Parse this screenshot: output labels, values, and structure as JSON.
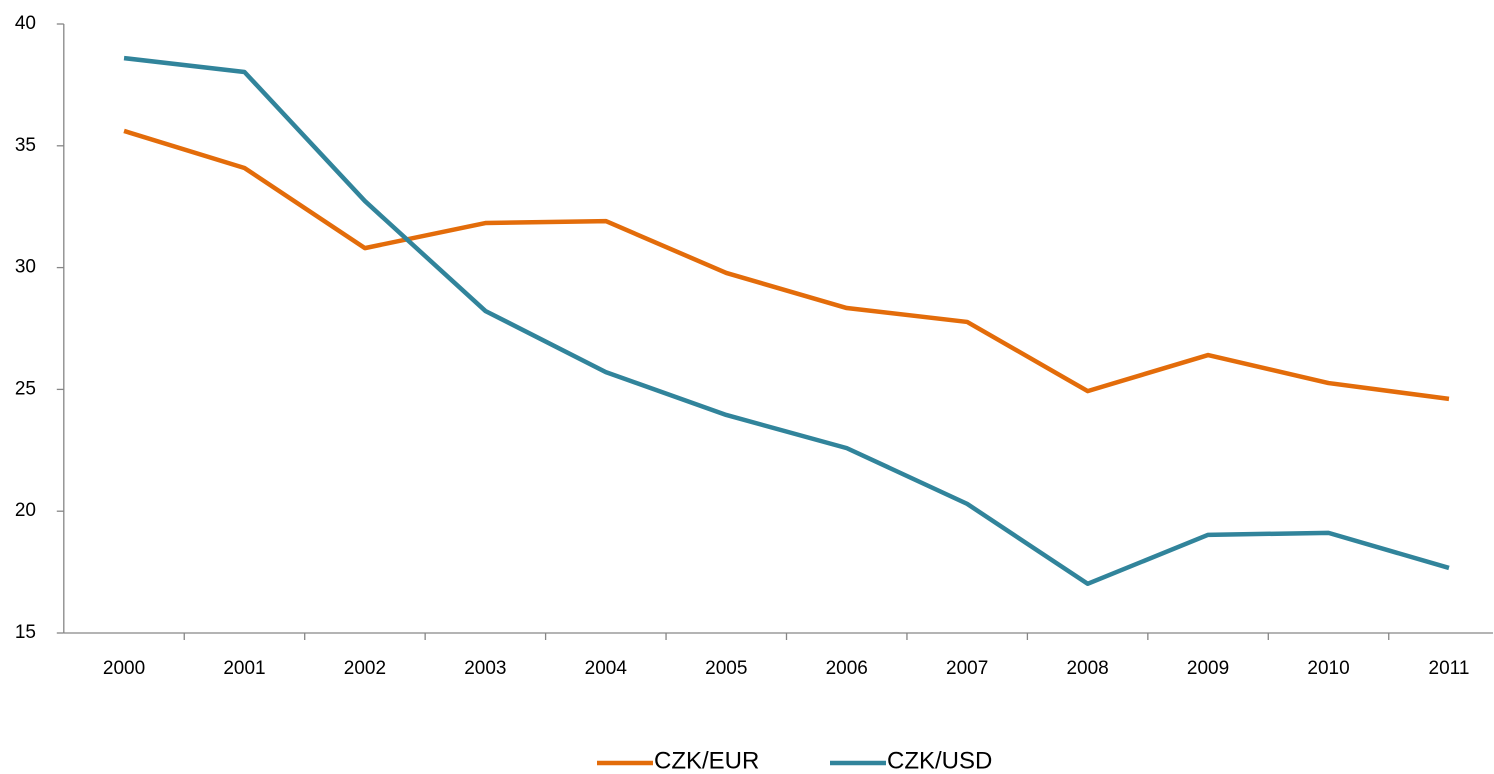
{
  "chart_data": {
    "type": "line",
    "categories": [
      "2000",
      "2001",
      "2002",
      "2003",
      "2004",
      "2005",
      "2006",
      "2007",
      "2008",
      "2009",
      "2010",
      "2011"
    ],
    "series": [
      {
        "name": "CZK/EUR",
        "color": "#e36c0a",
        "values": [
          35.61,
          34.09,
          30.8,
          31.83,
          31.91,
          29.78,
          28.34,
          27.77,
          24.93,
          26.41,
          25.26,
          24.61
        ]
      },
      {
        "name": "CZK/USD",
        "color": "#31849b",
        "values": [
          38.6,
          38.03,
          32.73,
          28.22,
          25.71,
          23.95,
          22.59,
          20.3,
          17.02,
          19.03,
          19.11,
          17.67
        ]
      }
    ],
    "ylim": [
      15,
      40
    ],
    "yticks": [
      15,
      20,
      25,
      30,
      35,
      40
    ],
    "grid": false,
    "legend": "bottom"
  }
}
